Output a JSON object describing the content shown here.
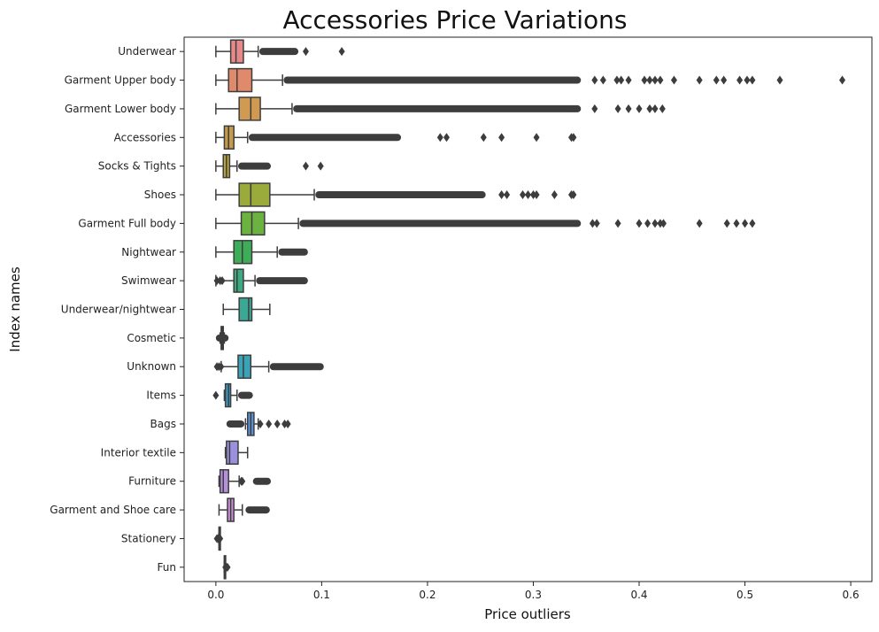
{
  "chart_data": {
    "type": "boxplot",
    "orientation": "horizontal",
    "title": "Accessories Price Variations",
    "xlabel": "Price outliers",
    "ylabel": "Index names",
    "xlim": [
      -0.03,
      0.62
    ],
    "xticks": [
      "0.0",
      "0.1",
      "0.2",
      "0.3",
      "0.4",
      "0.5",
      "0.6"
    ],
    "grid": false,
    "categories": [
      {
        "name": "Underwear",
        "color": "#e5898a",
        "min": 0.0,
        "q1": 0.014,
        "median": 0.019,
        "q3": 0.026,
        "max": 0.04,
        "outliers_range": [
          0.041,
          0.078
        ],
        "outliers_points": [
          0.085,
          0.119
        ]
      },
      {
        "name": "Garment Upper body",
        "color": "#e0896b",
        "min": 0.0,
        "q1": 0.012,
        "median": 0.02,
        "q3": 0.034,
        "max": 0.063,
        "outliers_range": [
          0.064,
          0.345
        ],
        "outliers_points": [
          0.358,
          0.366,
          0.379,
          0.383,
          0.39,
          0.405,
          0.41,
          0.415,
          0.42,
          0.433,
          0.457,
          0.473,
          0.48,
          0.495,
          0.502,
          0.507,
          0.533,
          0.592
        ]
      },
      {
        "name": "Garment Lower body",
        "color": "#d19a52",
        "min": 0.0,
        "q1": 0.022,
        "median": 0.033,
        "q3": 0.042,
        "max": 0.072,
        "outliers_range": [
          0.073,
          0.345
        ],
        "outliers_points": [
          0.358,
          0.38,
          0.39,
          0.4,
          0.41,
          0.415,
          0.422
        ]
      },
      {
        "name": "Accessories",
        "color": "#c49a4b",
        "min": 0.0,
        "q1": 0.008,
        "median": 0.012,
        "q3": 0.017,
        "max": 0.03,
        "outliers_range": [
          0.031,
          0.175
        ],
        "outliers_points": [
          0.212,
          0.218,
          0.253,
          0.27,
          0.303,
          0.336,
          0.338
        ]
      },
      {
        "name": "Socks & Tights",
        "color": "#b8a240",
        "min": 0.0,
        "q1": 0.007,
        "median": 0.01,
        "q3": 0.013,
        "max": 0.02,
        "outliers_range": [
          0.021,
          0.052
        ],
        "outliers_points": [
          0.085,
          0.099
        ]
      },
      {
        "name": "Shoes",
        "color": "#9aab3c",
        "min": 0.0,
        "q1": 0.022,
        "median": 0.033,
        "q3": 0.051,
        "max": 0.093,
        "outliers_range": [
          0.094,
          0.255
        ],
        "outliers_points": [
          0.27,
          0.275,
          0.29,
          0.295,
          0.3,
          0.303,
          0.32,
          0.336,
          0.338
        ]
      },
      {
        "name": "Garment Full body",
        "color": "#6bb240",
        "min": 0.0,
        "q1": 0.024,
        "median": 0.034,
        "q3": 0.046,
        "max": 0.078,
        "outliers_range": [
          0.079,
          0.345
        ],
        "outliers_points": [
          0.356,
          0.36,
          0.38,
          0.4,
          0.408,
          0.415,
          0.42,
          0.423,
          0.457,
          0.483,
          0.492,
          0.5,
          0.507
        ]
      },
      {
        "name": "Nightwear",
        "color": "#3ead5a",
        "min": 0.0,
        "q1": 0.017,
        "median": 0.025,
        "q3": 0.034,
        "max": 0.058,
        "outliers_range": [
          0.059,
          0.087
        ],
        "outliers_points": []
      },
      {
        "name": "Swimwear",
        "color": "#3caa80",
        "min": 0.0,
        "q1": 0.017,
        "median": 0.02,
        "q3": 0.026,
        "max": 0.037,
        "outliers_range": [
          0.038,
          0.087
        ],
        "outliers_points": [
          0.001,
          0.004,
          0.006
        ]
      },
      {
        "name": "Underwear/nightwear",
        "color": "#3aa895",
        "min": 0.007,
        "q1": 0.022,
        "median": 0.031,
        "q3": 0.034,
        "max": 0.051,
        "outliers_range": [],
        "outliers_points": []
      },
      {
        "name": "Cosmetic",
        "color": "#3aa6a8",
        "min": 0.004,
        "q1": 0.005,
        "median": 0.006,
        "q3": 0.007,
        "max": 0.008,
        "outliers_range": [
          0.0,
          0.012
        ],
        "outliers_points": []
      },
      {
        "name": "Unknown",
        "color": "#3aa3b8",
        "min": 0.005,
        "q1": 0.021,
        "median": 0.026,
        "q3": 0.033,
        "max": 0.05,
        "outliers_range": [
          0.051,
          0.102
        ],
        "outliers_points": [
          0.001,
          0.003,
          0.005
        ]
      },
      {
        "name": "Items",
        "color": "#3d97c2",
        "min": 0.008,
        "q1": 0.009,
        "median": 0.012,
        "q3": 0.014,
        "max": 0.02,
        "outliers_range": [
          0.021,
          0.035
        ],
        "outliers_points": [
          0.0
        ]
      },
      {
        "name": "Bags",
        "color": "#5b92d8",
        "min": 0.028,
        "q1": 0.03,
        "median": 0.033,
        "q3": 0.036,
        "max": 0.04,
        "outliers_range": [
          0.01,
          0.027
        ],
        "outliers_points": [
          0.042,
          0.05,
          0.058,
          0.065,
          0.068
        ]
      },
      {
        "name": "Interior textile",
        "color": "#9a90de",
        "min": 0.009,
        "q1": 0.01,
        "median": 0.013,
        "q3": 0.021,
        "max": 0.03,
        "outliers_range": [],
        "outliers_points": []
      },
      {
        "name": "Furniture",
        "color": "#b690dc",
        "min": 0.003,
        "q1": 0.004,
        "median": 0.007,
        "q3": 0.012,
        "max": 0.022,
        "outliers_range": [
          0.035,
          0.052
        ],
        "outliers_points": [
          0.024,
          0.025
        ]
      },
      {
        "name": "Garment and Shoe care",
        "color": "#c98fd6",
        "min": 0.003,
        "q1": 0.011,
        "median": 0.014,
        "q3": 0.017,
        "max": 0.025,
        "outliers_range": [
          0.028,
          0.051
        ],
        "outliers_points": []
      },
      {
        "name": "Stationery",
        "color": "#d68dc4",
        "min": 0.003,
        "q1": 0.003,
        "median": 0.003,
        "q3": 0.003,
        "max": 0.003,
        "outliers_range": [],
        "outliers_points": [
          0.001,
          0.002,
          0.003,
          0.004
        ]
      },
      {
        "name": "Fun",
        "color": "#df8dac",
        "min": 0.008,
        "q1": 0.008,
        "median": 0.008,
        "q3": 0.008,
        "max": 0.008,
        "outliers_range": [],
        "outliers_points": [
          0.009,
          0.01,
          0.011
        ]
      }
    ]
  }
}
